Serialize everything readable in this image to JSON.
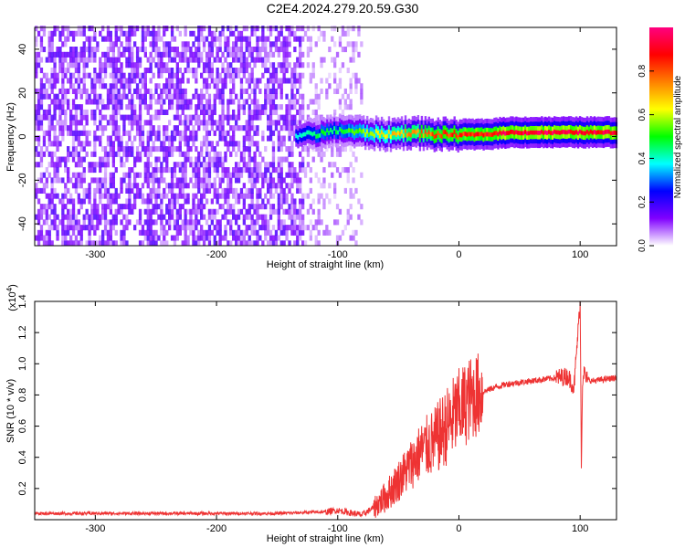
{
  "title": "C2E4.2024.279.20.59.G30",
  "chart_data": [
    {
      "type": "heatmap",
      "xlabel": "Height of straight line (km)",
      "ylabel": "Frequency (Hz)",
      "xlim": [
        -350,
        130
      ],
      "ylim": [
        -50,
        50
      ],
      "xticks": [
        -300,
        -200,
        -100,
        0,
        100
      ],
      "yticks": [
        -40,
        -20,
        0,
        20,
        40
      ],
      "colorbar": {
        "label": "Normalized spectral amplitude",
        "ticks": [
          0.0,
          0.2,
          0.4,
          0.6,
          0.8
        ],
        "colors": [
          "#ffffff",
          "#8000ff",
          "#0000ff",
          "#00ffff",
          "#00ff00",
          "#ffff00",
          "#ff8000",
          "#ff0000",
          "#ff0080"
        ]
      },
      "noise_region_x": [
        -350,
        -130
      ],
      "faint_region_x": [
        -130,
        -80
      ],
      "signal_line": {
        "x": [
          -135,
          -120,
          -100,
          -80,
          -60,
          -40,
          -20,
          0,
          20,
          40,
          60,
          80,
          100,
          130
        ],
        "freq": [
          1,
          1,
          3,
          2,
          1,
          2,
          1,
          1,
          1,
          2,
          2,
          2,
          2,
          2
        ],
        "amplitude": [
          0.4,
          0.5,
          0.5,
          0.6,
          0.7,
          0.8,
          0.85,
          0.9,
          0.95,
          1.0,
          1.0,
          1.0,
          1.0,
          1.0
        ]
      }
    },
    {
      "type": "line",
      "xlabel": "Height of straight line (km)",
      "ylabel": "SNR (10 * v/v)",
      "multiplier": "(x10^4)",
      "xlim": [
        -350,
        130
      ],
      "ylim": [
        0,
        1.4
      ],
      "xticks": [
        -300,
        -200,
        -100,
        0,
        100
      ],
      "yticks": [
        0.2,
        0.4,
        0.6,
        0.8,
        1.0,
        1.2,
        1.4
      ],
      "line_color": "#ee3333",
      "x": [
        -350,
        -250,
        -150,
        -110,
        -100,
        -80,
        -70,
        -60,
        -50,
        -40,
        -30,
        -20,
        -10,
        0,
        10,
        20,
        30,
        40,
        50,
        60,
        70,
        80,
        90,
        95,
        100,
        101,
        102,
        103,
        105,
        110,
        120,
        130
      ],
      "y": [
        0.04,
        0.04,
        0.04,
        0.05,
        0.06,
        0.03,
        0.08,
        0.15,
        0.25,
        0.35,
        0.45,
        0.5,
        0.6,
        0.7,
        0.78,
        0.82,
        0.85,
        0.87,
        0.88,
        0.89,
        0.9,
        0.91,
        0.92,
        0.85,
        1.4,
        0.35,
        0.9,
        0.95,
        0.9,
        0.89,
        0.9,
        0.91
      ]
    }
  ]
}
